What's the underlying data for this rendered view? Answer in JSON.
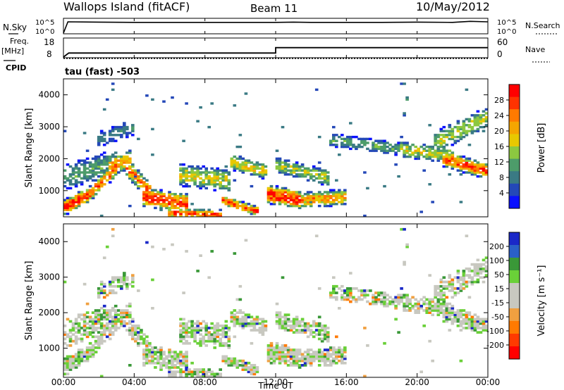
{
  "header": {
    "station": "Wallops Island (fitACF)",
    "beam": "Beam 11",
    "date": "10/May/2012"
  },
  "panels": {
    "nsky": {
      "label": "N.Sky",
      "right_label": "N.Search",
      "ticks": [
        "10^5",
        "10^0"
      ],
      "right_ticks": [
        "10^5",
        "10^0"
      ]
    },
    "freq": {
      "label": "Freq.",
      "unit": "[MHz]",
      "ticks": [
        "18",
        "8"
      ],
      "right_label": "Nave",
      "right_ticks": [
        "60",
        "0"
      ],
      "cpid_label": "CPID",
      "cpid_text": "tau (fast) -503"
    }
  },
  "chart_data": [
    {
      "type": "line",
      "name": "N.Sky / N.Search",
      "x_hours": [
        0,
        0.25,
        2,
        4,
        6,
        8,
        10,
        12,
        13,
        14,
        16,
        18,
        20,
        22,
        23,
        24
      ],
      "y_log": [
        0,
        4.2,
        4.1,
        4.0,
        4.0,
        4.0,
        4.0,
        4.0,
        4.1,
        4.0,
        4.0,
        4.0,
        4.1,
        4.0,
        4.4,
        4.2
      ]
    },
    {
      "type": "line",
      "name": "Freq / Nave",
      "freq_mhz": [
        {
          "x": 0,
          "y": 8
        },
        {
          "x": 0.3,
          "y": 11
        },
        {
          "x": 12,
          "y": 11
        },
        {
          "x": 12,
          "y": 15
        },
        {
          "x": 24,
          "y": 15
        }
      ],
      "nave": [
        {
          "x": 0,
          "y": 8
        },
        {
          "x": 24,
          "y": 8
        }
      ]
    },
    {
      "type": "heatmap",
      "title": "Power",
      "ylabel": "Slant Range [km]",
      "ylim": [
        180,
        4500
      ],
      "yticks": [
        "1000",
        "2000",
        "3000",
        "4000"
      ],
      "colorbar_label": "Power [dB]",
      "colorbar_ticks": [
        "28",
        "24",
        "20",
        "16",
        "12",
        "8",
        "4"
      ],
      "colorbar_colors": [
        "#ff0000",
        "#ff3300",
        "#ff7a00",
        "#f5a500",
        "#e8c800",
        "#8cc840",
        "#4d9c6a",
        "#3a7a84",
        "#2448b8",
        "#0a10ff"
      ]
    },
    {
      "type": "heatmap",
      "title": "Velocity",
      "ylabel": "Slant Range [km]",
      "ylim": [
        180,
        4500
      ],
      "yticks": [
        "1000",
        "2000",
        "3000",
        "4000"
      ],
      "colorbar_label": "Velocity [m s⁻¹]",
      "colorbar_ticks": [
        "200",
        "100",
        "50",
        "15",
        "-15",
        "-50",
        "-100",
        "-200"
      ],
      "colorbar_colors": [
        "#1a28c8",
        "#2a60c8",
        "#3a9838",
        "#6ad038",
        "#c8c8c0",
        "#c8c8c0",
        "#f0a040",
        "#ff7a00",
        "#ff3a00",
        "#ff0000"
      ]
    }
  ],
  "xaxis": {
    "label": "Time UT",
    "ticks": [
      "00:00",
      "04:00",
      "08:00",
      "12:00",
      "16:00",
      "20:00",
      "00:00"
    ]
  }
}
